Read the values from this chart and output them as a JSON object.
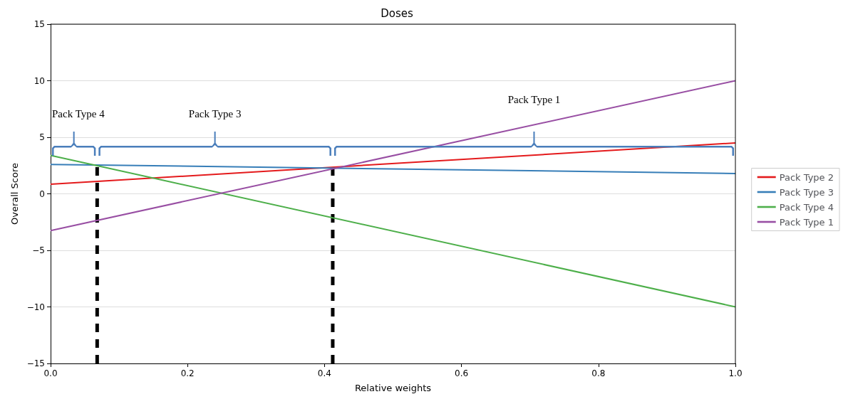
{
  "chart_data": {
    "type": "line",
    "title": "Doses",
    "xlabel": "Relative weights",
    "ylabel": "Overall Score",
    "xlim": [
      0,
      1
    ],
    "xticks": [
      {
        "value": 0,
        "label": "0.0"
      },
      0.2,
      0.4,
      0.6,
      0.8,
      {
        "value": 1,
        "label": "1.0"
      }
    ],
    "ylim": [
      -15,
      15
    ],
    "yticks": [
      {
        "value": -15,
        "label": "−15"
      },
      {
        "value": -10,
        "label": "−10"
      },
      {
        "value": -5,
        "label": "−5"
      },
      0,
      5,
      10,
      15
    ],
    "grid": "y",
    "legend": "right",
    "marker": "none",
    "series": [
      {
        "name": "Pack Type 2",
        "color": "#e41a1c",
        "x": [
          0,
          1
        ],
        "values": [
          0.85,
          4.5
        ]
      },
      {
        "name": "Pack Type 3",
        "color": "#377eb8",
        "x": [
          0,
          1
        ],
        "values": [
          2.6,
          1.8
        ]
      },
      {
        "name": "Pack Type 4",
        "color": "#4daf4a",
        "x": [
          0,
          1
        ],
        "values": [
          3.4,
          -10
        ]
      },
      {
        "name": "Pack Type 1",
        "color": "#984ea3",
        "x": [
          0,
          1
        ],
        "values": [
          -3.25,
          10
        ]
      },
      {
        "color": "#000000",
        "line_style": "dashed",
        "x": [
          0.068,
          0.068
        ],
        "values": [
          -15,
          2.5
        ]
      },
      {
        "color": "#000000",
        "line_style": "dashed",
        "x": [
          0.412,
          0.412
        ],
        "values": [
          -15,
          2.3
        ]
      }
    ],
    "annotations": [
      "Pack Type 4",
      "Pack Type 3",
      "Pack Type 1"
    ]
  }
}
